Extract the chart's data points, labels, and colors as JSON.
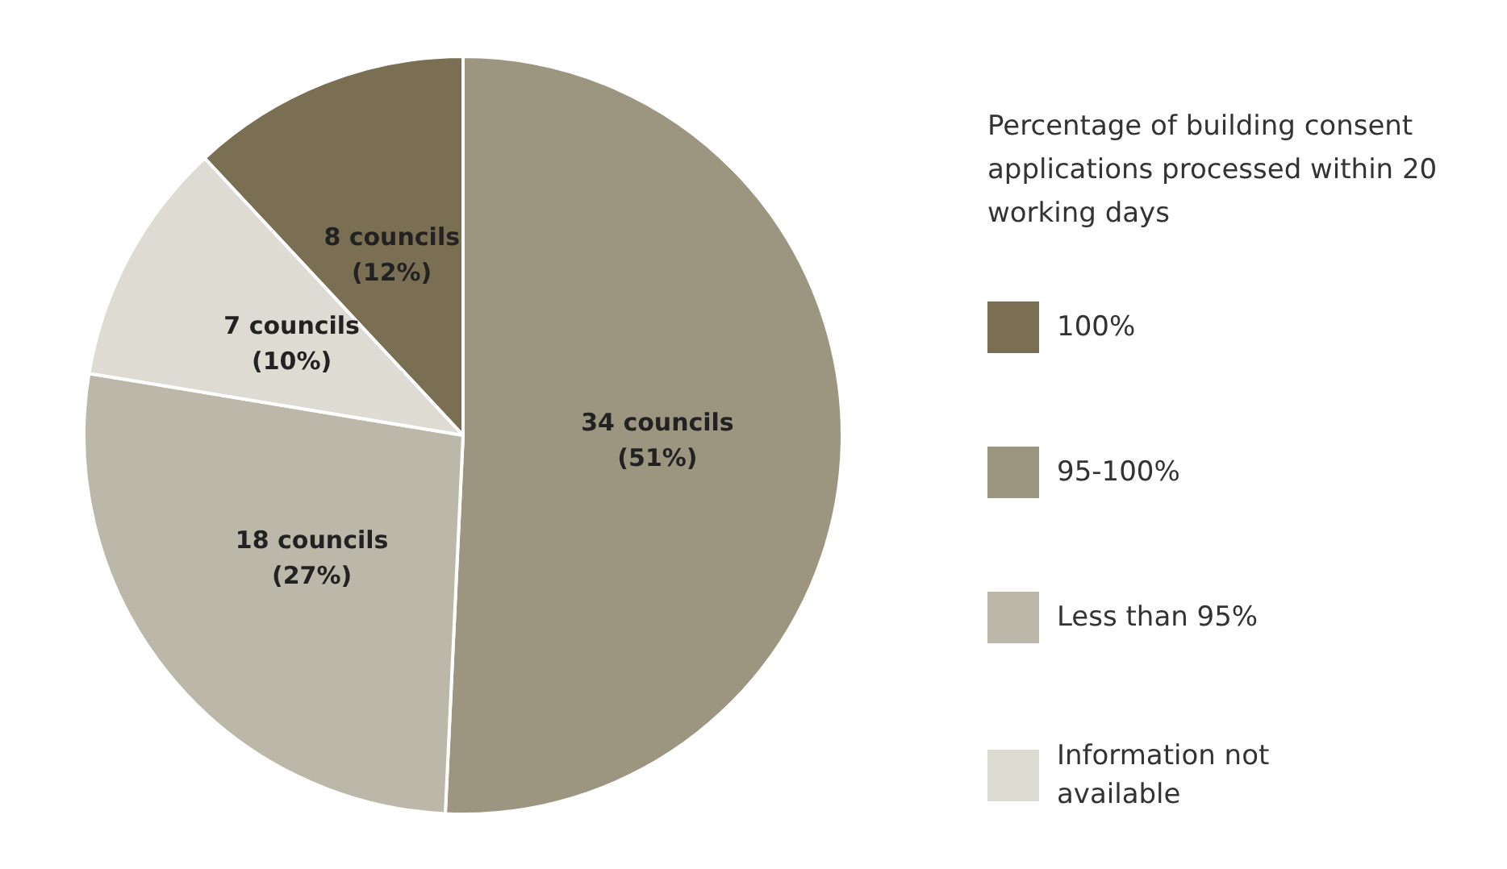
{
  "chart_data": {
    "type": "pie",
    "legend_title": "Percentage of building consent applications processed within 20 working days",
    "categories": [
      "100%",
      "95-100%",
      "Less than 95%",
      "Information not available"
    ],
    "values": [
      8,
      34,
      18,
      7
    ],
    "value_labels": [
      "8 councils\n(12%)",
      "34 councils\n(51%)",
      "18 councils\n(27%)",
      "7 councils\n(10%)"
    ],
    "colors": [
      "#7a6f52",
      "#9c9580",
      "#bcb8a9",
      "#dedbd3"
    ],
    "legend": "right"
  }
}
